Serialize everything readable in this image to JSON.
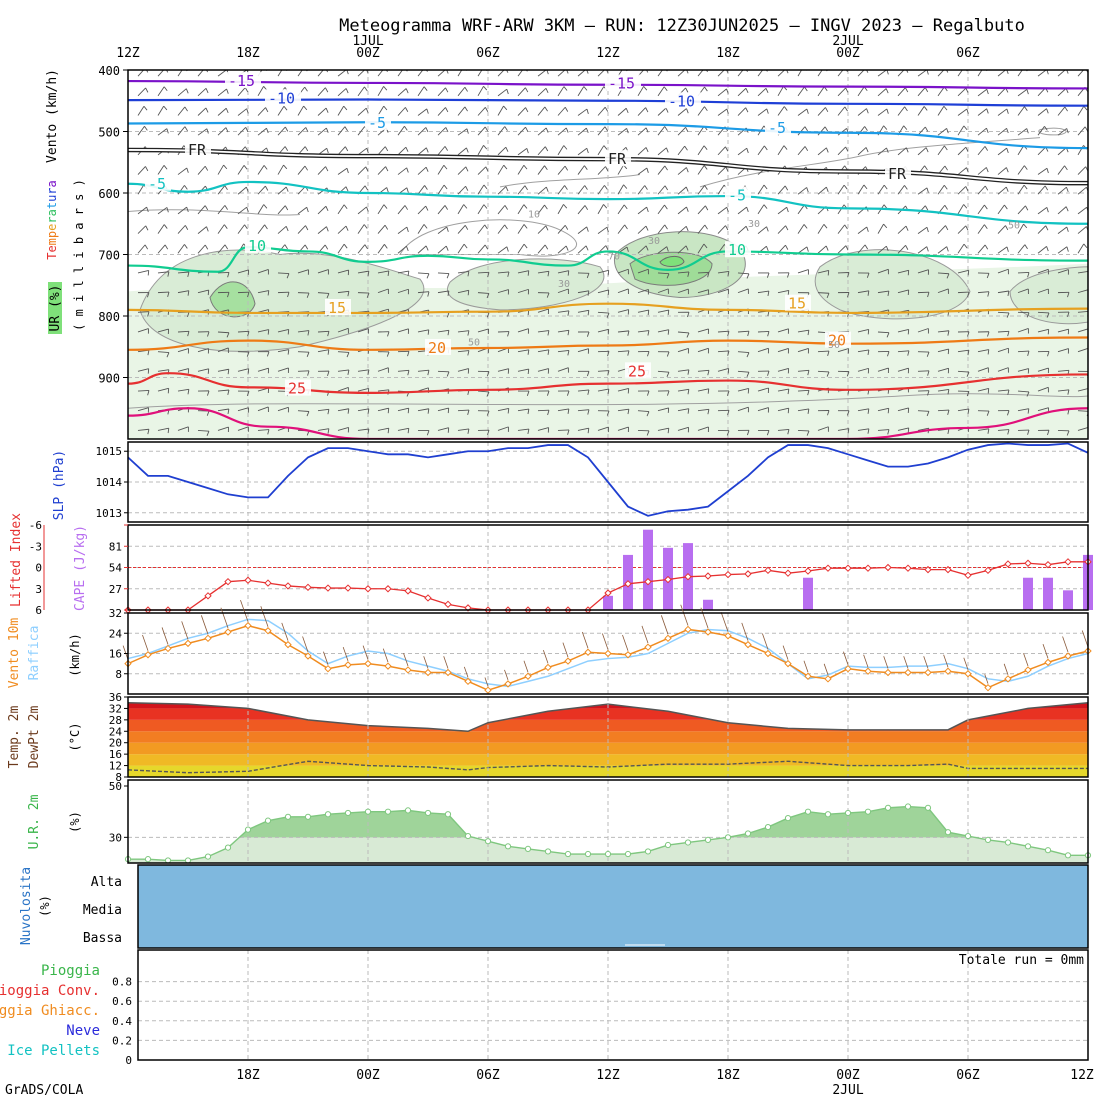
{
  "title": "Meteogramma WRF-ARW 3KM – RUN: 12Z30JUN2025 – INGV 2023 – Regalbuto",
  "footer_credit": "GrADS/COLA",
  "time_axis_top": [
    {
      "h": 0,
      "label": "12Z",
      "date": ""
    },
    {
      "h": 6,
      "label": "18Z",
      "date": ""
    },
    {
      "h": 12,
      "label": "00Z",
      "date": "1JUL"
    },
    {
      "h": 18,
      "label": "06Z",
      "date": ""
    },
    {
      "h": 24,
      "label": "12Z",
      "date": ""
    },
    {
      "h": 30,
      "label": "18Z",
      "date": ""
    },
    {
      "h": 36,
      "label": "00Z",
      "date": "2JUL"
    },
    {
      "h": 42,
      "label": "06Z",
      "date": ""
    }
  ],
  "time_axis_bottom": [
    {
      "h": 6,
      "label": "18Z",
      "date": ""
    },
    {
      "h": 12,
      "label": "00Z",
      "date": ""
    },
    {
      "h": 18,
      "label": "06Z",
      "date": ""
    },
    {
      "h": 24,
      "label": "12Z",
      "date": ""
    },
    {
      "h": 30,
      "label": "18Z",
      "date": ""
    },
    {
      "h": 36,
      "label": "00Z",
      "date": "2JUL"
    },
    {
      "h": 42,
      "label": "06Z",
      "date": ""
    },
    {
      "h": 48,
      "label": "12Z",
      "date": ""
    }
  ],
  "chart_data": [
    {
      "id": "upper_air",
      "type": "line",
      "side_labels": [
        "Vento (km/h)",
        "Temperatura",
        "UR (%)",
        "( m i l l i b a r s )"
      ],
      "ylim": [
        400,
        1000
      ],
      "yticks": [
        400,
        500,
        600,
        700,
        800,
        900
      ],
      "isotherms": [
        {
          "label": "-15",
          "color": "#7a12c9",
          "x": [
            0,
            12,
            24,
            36,
            48
          ],
          "y": [
            418,
            421,
            424,
            427,
            430
          ],
          "label_at": [
            [
              5,
              418
            ],
            [
              24,
              422
            ]
          ]
        },
        {
          "label": "-10",
          "color": "#1e3fd6",
          "x": [
            0,
            12,
            24,
            36,
            48
          ],
          "y": [
            449,
            448,
            450,
            455,
            458
          ],
          "label_at": [
            [
              7,
              446
            ],
            [
              27,
              451
            ]
          ]
        },
        {
          "label": "-5",
          "color": "#1c9be6",
          "x": [
            0,
            12,
            24,
            36,
            48
          ],
          "y": [
            487,
            485,
            488,
            502,
            527
          ],
          "label_at": [
            [
              12,
              486
            ],
            [
              32,
              494
            ]
          ]
        },
        {
          "label": "FR",
          "color": "#222222",
          "x": [
            0,
            12,
            24,
            36,
            48
          ],
          "y": [
            530,
            540,
            545,
            565,
            584
          ],
          "label_at": [
            [
              3,
              530
            ],
            [
              24,
              545
            ],
            [
              38,
              569
            ]
          ]
        },
        {
          "label": "-5",
          "color": "#12c2c2",
          "x": [
            0,
            3,
            6,
            12,
            18,
            24,
            30,
            36,
            48
          ],
          "y": [
            585,
            598,
            582,
            600,
            606,
            610,
            605,
            625,
            650
          ],
          "label_at": [
            [
              1,
              585
            ],
            [
              30,
              604
            ]
          ]
        },
        {
          "label": "10",
          "color": "#10cc90",
          "x": [
            0,
            4.5,
            6,
            9,
            12,
            15,
            18,
            22,
            24,
            27,
            30,
            36,
            48
          ],
          "y": [
            718,
            728,
            688,
            695,
            712,
            702,
            708,
            718,
            695,
            725,
            695,
            700,
            710
          ],
          "label_at": [
            [
              6,
              686
            ],
            [
              30,
              693
            ]
          ]
        },
        {
          "label": "15",
          "color": "#e6a020",
          "x": [
            0,
            6,
            12,
            18,
            24,
            30,
            36,
            48
          ],
          "y": [
            790,
            795,
            795,
            793,
            780,
            790,
            795,
            788
          ],
          "label_at": [
            [
              10,
              787
            ],
            [
              33,
              780
            ]
          ]
        },
        {
          "label": "20",
          "color": "#ee7a15",
          "x": [
            0,
            6,
            12,
            18,
            24,
            30,
            36,
            48
          ],
          "y": [
            855,
            840,
            855,
            852,
            848,
            840,
            845,
            835
          ],
          "label_at": [
            [
              15,
              852
            ],
            [
              35,
              840
            ]
          ]
        },
        {
          "label": "25",
          "color": "#e63030",
          "x": [
            0,
            2,
            6,
            12,
            18,
            24,
            30,
            36,
            48
          ],
          "y": [
            910,
            893,
            916,
            925,
            920,
            910,
            905,
            920,
            895
          ],
          "label_at": [
            [
              8,
              918
            ],
            [
              25,
              890
            ]
          ]
        },
        {
          "label": "",
          "color": "#e0107a",
          "x": [
            0,
            3,
            7,
            12,
            24,
            36,
            42,
            48
          ],
          "y": [
            962,
            950,
            980,
            1000,
            1000,
            1000,
            982,
            950
          ],
          "label_at": []
        }
      ],
      "humidity_contour_labels": [
        "10",
        "30",
        "50",
        "70"
      ]
    },
    {
      "id": "slp",
      "type": "line",
      "ylabel": "SLP (hPa)",
      "ylim": [
        1012.7,
        1015.3
      ],
      "yticks": [
        1013,
        1014,
        1015
      ],
      "x": [
        0,
        1,
        2,
        3,
        4,
        5,
        6,
        7,
        8,
        9,
        10,
        11,
        12,
        13,
        14,
        15,
        16,
        17,
        18,
        19,
        20,
        21,
        22,
        23,
        24,
        25,
        26,
        27,
        28,
        29,
        30,
        31,
        32,
        33,
        34,
        35,
        36,
        37,
        38,
        39,
        40,
        41,
        42,
        43,
        44,
        45,
        46,
        47,
        48
      ],
      "values": [
        1014.8,
        1014.2,
        1014.2,
        1014.0,
        1013.8,
        1013.6,
        1013.5,
        1013.5,
        1014.2,
        1014.8,
        1015.1,
        1015.1,
        1015.0,
        1014.9,
        1014.9,
        1014.8,
        1014.9,
        1015.0,
        1015.0,
        1015.1,
        1015.1,
        1015.2,
        1015.2,
        1014.8,
        1014.0,
        1013.2,
        1012.9,
        1013.05,
        1013.1,
        1013.2,
        1013.7,
        1014.2,
        1014.8,
        1015.2,
        1015.2,
        1015.1,
        1014.9,
        1014.7,
        1014.5,
        1014.5,
        1014.6,
        1014.8,
        1015.05,
        1015.2,
        1015.25,
        1015.2,
        1015.2,
        1015.25,
        1014.95
      ],
      "color": "#1f3fd0"
    },
    {
      "id": "cape_li",
      "type": "bar",
      "ylabels": [
        "Lifted Index",
        "CAPE (J/kg)"
      ],
      "li_ticks": [
        -6,
        -3,
        0,
        3,
        6
      ],
      "cape_ticks": [
        27,
        54,
        81
      ],
      "cape_ylim": [
        0,
        108
      ],
      "li_range": [
        -6,
        6
      ],
      "cape_x": [
        24,
        25,
        26,
        27,
        28,
        29,
        34,
        45,
        46,
        47,
        48
      ],
      "cape_values": [
        18,
        70,
        102,
        79,
        85,
        13,
        41,
        41,
        41,
        25,
        70
      ],
      "li_x": [
        0,
        1,
        2,
        3,
        4,
        5,
        6,
        7,
        8,
        9,
        10,
        11,
        12,
        13,
        14,
        15,
        16,
        17,
        18,
        19,
        20,
        21,
        22,
        23,
        24,
        25,
        26,
        27,
        28,
        29,
        30,
        31,
        32,
        33,
        34,
        35,
        36,
        37,
        38,
        39,
        40,
        41,
        42,
        43,
        44,
        45,
        46,
        47,
        48
      ],
      "li_values": [
        6,
        6,
        6,
        6,
        4,
        2,
        1.8,
        2.2,
        2.6,
        2.8,
        2.9,
        2.9,
        3.0,
        3.0,
        3.3,
        4.3,
        5.2,
        5.7,
        6,
        6,
        6,
        6,
        6,
        6,
        3.6,
        2.3,
        2.0,
        1.7,
        1.3,
        1.2,
        1.0,
        0.9,
        0.4,
        0.8,
        0.5,
        0.1,
        0.1,
        0.1,
        0.0,
        0.1,
        0.3,
        0.3,
        1.1,
        0.4,
        -0.5,
        -0.6,
        -0.4,
        -0.8,
        -0.8
      ],
      "li_color": "#e63030",
      "cape_color": "#b86ef0"
    },
    {
      "id": "wind10m",
      "type": "line",
      "ylabels": [
        "Vento 10m",
        "Raffica",
        "(km/h)"
      ],
      "ylim": [
        0,
        32
      ],
      "yticks": [
        8,
        16,
        24,
        32
      ],
      "x": [
        0,
        1,
        2,
        3,
        4,
        5,
        6,
        7,
        8,
        9,
        10,
        11,
        12,
        13,
        14,
        15,
        16,
        17,
        18,
        19,
        20,
        21,
        22,
        23,
        24,
        25,
        26,
        27,
        28,
        29,
        30,
        31,
        32,
        33,
        34,
        35,
        36,
        37,
        38,
        39,
        40,
        41,
        42,
        43,
        44,
        45,
        46,
        47,
        48
      ],
      "wind": [
        12,
        15.5,
        18,
        20,
        22,
        24.5,
        27,
        25,
        19.5,
        15,
        10,
        11.5,
        12,
        11,
        9.5,
        8.5,
        8.5,
        5,
        1.5,
        4,
        7,
        10.5,
        13,
        16.5,
        16,
        15.5,
        18.5,
        22,
        25.5,
        24.5,
        23,
        19.5,
        16,
        12,
        7,
        6,
        10,
        9,
        8.5,
        8.5,
        8.5,
        9,
        8,
        2.5,
        6,
        9.5,
        12.5,
        15,
        17
      ],
      "gust": [
        14,
        16,
        19,
        22,
        24,
        27,
        29.5,
        29,
        24,
        17,
        12,
        15,
        17,
        16,
        13,
        11,
        9,
        6,
        4,
        3,
        5,
        7,
        10,
        13,
        14,
        14.5,
        16,
        20,
        24,
        25.5,
        25,
        22,
        18,
        12,
        6,
        7.5,
        11,
        10.5,
        10.5,
        11,
        11,
        12,
        10,
        6,
        5,
        7,
        11,
        14,
        16
      ],
      "wind_color": "#f08c20",
      "gust_color": "#8ecfff"
    },
    {
      "id": "temp2m",
      "type": "area",
      "ylabels": [
        "Temp. 2m",
        "DewPt 2m",
        "(°C)"
      ],
      "ylim": [
        8,
        36
      ],
      "yticks": [
        8,
        12,
        16,
        20,
        24,
        28,
        32,
        36
      ],
      "x": [
        0,
        3,
        6,
        9,
        12,
        15,
        17,
        18,
        21,
        24,
        27,
        30,
        33,
        36,
        39,
        41,
        42,
        45,
        48
      ],
      "temp": [
        34,
        33.5,
        32,
        28,
        26,
        25,
        24,
        27,
        31,
        33.5,
        31,
        27,
        25,
        24.5,
        24.5,
        24.5,
        28,
        32,
        34
      ],
      "dewpt": [
        10.5,
        9.5,
        10,
        13.5,
        12,
        11.5,
        10.5,
        11.3,
        12,
        11.5,
        12.5,
        12.5,
        13.5,
        12,
        12,
        12.5,
        11,
        11,
        11
      ],
      "color_bands": [
        "#e6d82b",
        "#f0b925",
        "#f29a22",
        "#f27d22",
        "#ef5a22",
        "#e83222",
        "#d1141c",
        "#a80015",
        "#e0107a"
      ],
      "line_color": "#555555"
    },
    {
      "id": "rh2m",
      "type": "area",
      "ylabels": [
        "U.R. 2m",
        "(%)"
      ],
      "ylim": [
        20,
        50
      ],
      "yticks": [
        30,
        50
      ],
      "x": [
        0,
        1,
        2,
        3,
        4,
        5,
        6,
        7,
        8,
        9,
        10,
        11,
        12,
        13,
        14,
        15,
        16,
        17,
        18,
        19,
        20,
        21,
        22,
        23,
        24,
        25,
        26,
        27,
        28,
        29,
        30,
        31,
        32,
        33,
        34,
        35,
        36,
        37,
        38,
        39,
        40,
        41,
        42,
        43,
        44,
        45,
        46,
        47,
        48
      ],
      "values": [
        21.5,
        21.5,
        21,
        21,
        22.5,
        26,
        33,
        36.5,
        38,
        38,
        39,
        39.5,
        40,
        40,
        40.5,
        39.5,
        39,
        30.5,
        28.5,
        26.5,
        25.5,
        24.5,
        23.5,
        23.5,
        23.5,
        23.5,
        24.5,
        27,
        28,
        29,
        30,
        31.5,
        34,
        37.5,
        40,
        39,
        39.5,
        40,
        41.5,
        42,
        41.5,
        32,
        30.5,
        29,
        28,
        26.5,
        25,
        23,
        23
      ],
      "color": "#7fc77f"
    },
    {
      "id": "clouds",
      "type": "area",
      "ylabels": [
        "Nuvolosita",
        "(%)"
      ],
      "levels": [
        "Alta",
        "Media",
        "Bassa"
      ],
      "fill_color": "#7fb8de"
    },
    {
      "id": "precip",
      "type": "bar",
      "legend": [
        {
          "label": "Pioggia",
          "color": "#39b54a"
        },
        {
          "label": "Pioggia Conv.",
          "color": "#e63030"
        },
        {
          "label": "Pioggia Ghiacc.",
          "color": "#f08c20"
        },
        {
          "label": "Neve",
          "color": "#2a2adb"
        },
        {
          "label": "Ice Pellets",
          "color": "#12c2c2"
        }
      ],
      "ylim": [
        0,
        1
      ],
      "yticks": [
        "0",
        "0.2",
        "0.4",
        "0.6",
        "0.8"
      ],
      "total_label": "Totale run = 0mm",
      "values": []
    }
  ]
}
